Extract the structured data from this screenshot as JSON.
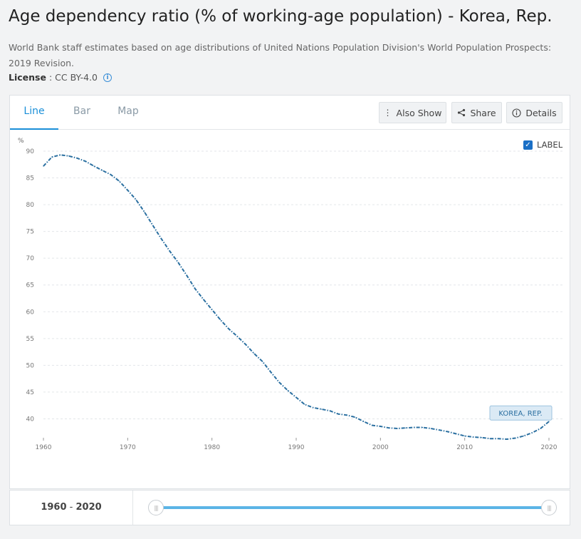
{
  "header": {
    "title": "Age dependency ratio (% of working-age population) - Korea, Rep.",
    "source": "World Bank staff estimates based on age distributions of United Nations Population Division's World Population Prospects: 2019 Revision.",
    "license_label": "License",
    "license_sep": " : ",
    "license_value": "CC BY-4.0"
  },
  "tabs": [
    {
      "label": "Line",
      "active": true
    },
    {
      "label": "Bar",
      "active": false
    },
    {
      "label": "Map",
      "active": false
    }
  ],
  "toolbar": {
    "also_show": "Also Show",
    "share": "Share",
    "details": "Details"
  },
  "label_toggle": {
    "text": "LABEL",
    "checked": true
  },
  "colors": {
    "accent": "#1a8fd8",
    "series": "#2a6fa0",
    "label_bg": "#dbeaf5"
  },
  "chart_data": {
    "type": "line",
    "title": "",
    "xlabel": "",
    "ylabel": "%",
    "xlim": [
      1960,
      2020
    ],
    "ylim": [
      35,
      90
    ],
    "yticks": [
      40,
      45,
      50,
      55,
      60,
      65,
      70,
      75,
      80,
      85,
      90
    ],
    "xticks": [
      1960,
      1970,
      1980,
      1990,
      2000,
      2010,
      2020
    ],
    "grid": true,
    "series": [
      {
        "name": "KOREA, REP.",
        "x": [
          1960,
          1961,
          1962,
          1963,
          1964,
          1965,
          1966,
          1967,
          1968,
          1969,
          1970,
          1971,
          1972,
          1973,
          1974,
          1975,
          1976,
          1977,
          1978,
          1979,
          1980,
          1981,
          1982,
          1983,
          1984,
          1985,
          1986,
          1987,
          1988,
          1989,
          1990,
          1991,
          1992,
          1993,
          1994,
          1995,
          1996,
          1997,
          1998,
          1999,
          2000,
          2001,
          2002,
          2003,
          2004,
          2005,
          2006,
          2007,
          2008,
          2009,
          2010,
          2011,
          2012,
          2013,
          2014,
          2015,
          2016,
          2017,
          2018,
          2019,
          2020
        ],
        "values": [
          87.2,
          88.9,
          89.3,
          89.1,
          88.7,
          88.1,
          87.2,
          86.4,
          85.6,
          84.4,
          82.7,
          80.9,
          78.6,
          76.1,
          73.6,
          71.3,
          69.2,
          66.8,
          64.3,
          62.3,
          60.4,
          58.5,
          56.8,
          55.4,
          53.9,
          52.2,
          50.7,
          48.7,
          46.8,
          45.3,
          44.0,
          42.7,
          42.1,
          41.8,
          41.5,
          40.9,
          40.7,
          40.3,
          39.5,
          38.8,
          38.6,
          38.3,
          38.2,
          38.3,
          38.4,
          38.4,
          38.2,
          37.9,
          37.6,
          37.2,
          36.8,
          36.6,
          36.5,
          36.3,
          36.3,
          36.2,
          36.4,
          36.8,
          37.4,
          38.2,
          39.5
        ]
      }
    ]
  },
  "range": {
    "start": "1960",
    "sep": " - ",
    "end": "2020",
    "handle_glyph": "|||"
  }
}
